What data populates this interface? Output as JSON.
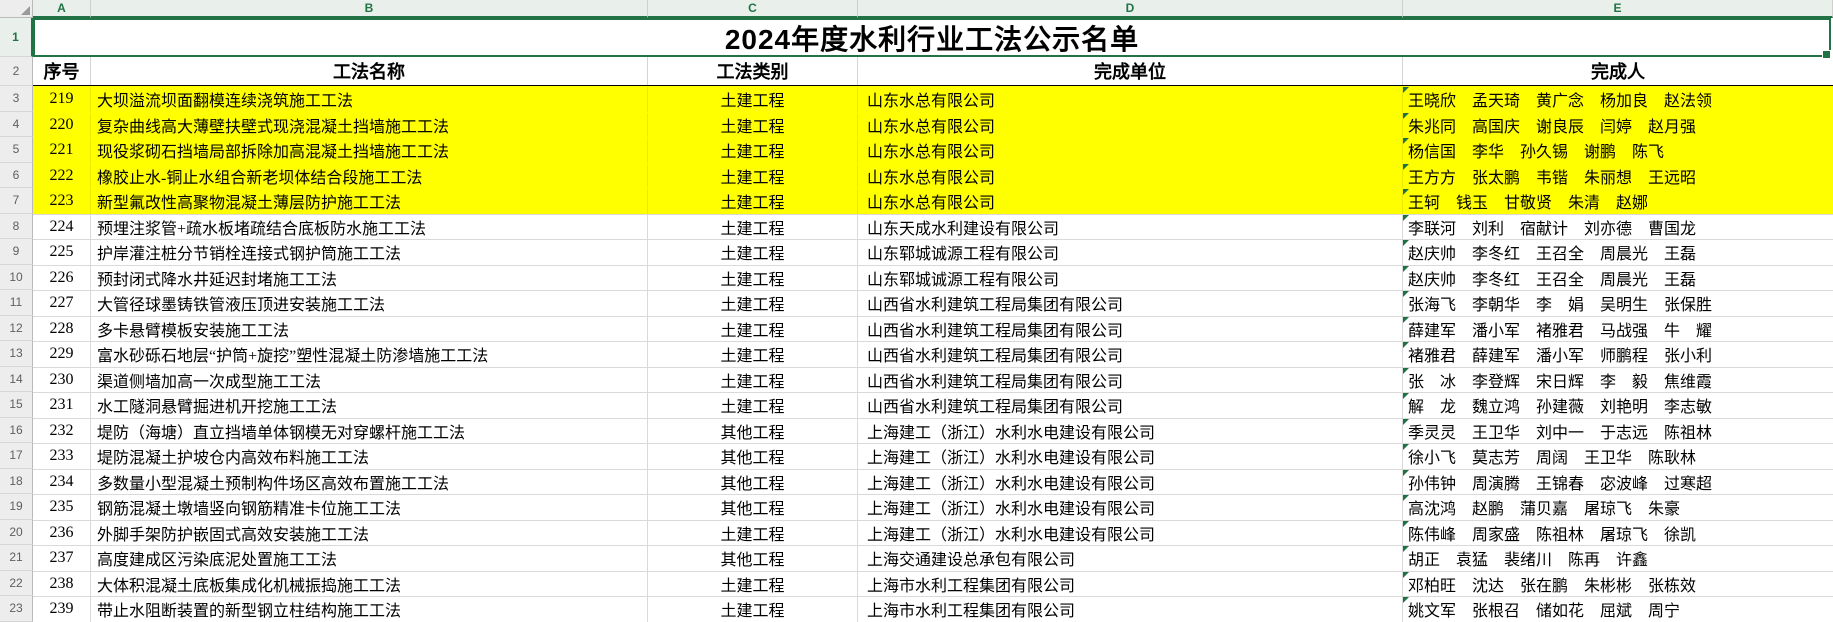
{
  "app": {
    "title_cell": "2024年度水利行业工法公示名单",
    "column_letters": [
      "A",
      "B",
      "C",
      "D",
      "E"
    ],
    "row_numbers": [
      "1",
      "2",
      "3",
      "4",
      "5",
      "6",
      "7",
      "8",
      "9",
      "10",
      "11",
      "12",
      "13",
      "14",
      "15",
      "16",
      "17",
      "18",
      "19",
      "20",
      "21",
      "22",
      "23"
    ],
    "colors": {
      "accent_green": "#217346",
      "highlight_yellow": "#FFFF00"
    },
    "table": {
      "headers": {
        "no": "序号",
        "name": "工法名称",
        "category": "工法类别",
        "unit": "完成单位",
        "people": "完成人"
      },
      "rows": [
        {
          "no": "219",
          "name": "大坝溢流坝面翻模连续浇筑施工工法",
          "category": "土建工程",
          "unit": "山东水总有限公司",
          "people": [
            "王晓欣",
            "孟天琦",
            "黄广念",
            "杨加良",
            "赵法领"
          ],
          "highlight": true
        },
        {
          "no": "220",
          "name": "复杂曲线高大薄壁扶壁式现浇混凝土挡墙施工工法",
          "category": "土建工程",
          "unit": "山东水总有限公司",
          "people": [
            "朱兆同",
            "高国庆",
            "谢良辰",
            "闫婷",
            "赵月强"
          ],
          "highlight": true
        },
        {
          "no": "221",
          "name": "现役浆砌石挡墙局部拆除加高混凝土挡墙施工工法",
          "category": "土建工程",
          "unit": "山东水总有限公司",
          "people": [
            "杨信国",
            "李华",
            "孙久锡",
            "谢鹏",
            "陈飞"
          ],
          "highlight": true
        },
        {
          "no": "222",
          "name": "橡胶止水-铜止水组合新老坝体结合段施工工法",
          "category": "土建工程",
          "unit": "山东水总有限公司",
          "people": [
            "王方方",
            "张太鹏",
            "韦锴",
            "朱丽想",
            "王远昭"
          ],
          "highlight": true
        },
        {
          "no": "223",
          "name": "新型氟改性高聚物混凝土薄层防护施工工法",
          "category": "土建工程",
          "unit": "山东水总有限公司",
          "people": [
            "王轲",
            "钱玉",
            "甘敬贤",
            "朱清",
            "赵娜"
          ],
          "highlight": true
        },
        {
          "no": "224",
          "name": "预埋注浆管+疏水板堵疏结合底板防水施工工法",
          "category": "土建工程",
          "unit": "山东天成水利建设有限公司",
          "people": [
            "李联河",
            "刘利",
            "宿献计",
            "刘亦德",
            "曹国龙"
          ],
          "highlight": false
        },
        {
          "no": "225",
          "name": "护岸灌注桩分节销栓连接式钢护筒施工工法",
          "category": "土建工程",
          "unit": "山东郓城诚源工程有限公司",
          "people": [
            "赵庆帅",
            "李冬红",
            "王召全",
            "周晨光",
            "王磊"
          ],
          "highlight": false
        },
        {
          "no": "226",
          "name": "预封闭式降水井延迟封堵施工工法",
          "category": "土建工程",
          "unit": "山东郓城诚源工程有限公司",
          "people": [
            "赵庆帅",
            "李冬红",
            "王召全",
            "周晨光",
            "王磊"
          ],
          "highlight": false
        },
        {
          "no": "227",
          "name": "大管径球墨铸铁管液压顶进安装施工工法",
          "category": "土建工程",
          "unit": "山西省水利建筑工程局集团有限公司",
          "people": [
            "张海飞",
            "李朝华",
            "李　娟",
            "吴明生",
            "张保胜"
          ],
          "highlight": false
        },
        {
          "no": "228",
          "name": "多卡悬臂模板安装施工工法",
          "category": "土建工程",
          "unit": "山西省水利建筑工程局集团有限公司",
          "people": [
            "薛建军",
            "潘小军",
            "褚雅君",
            "马战强",
            "牛　耀"
          ],
          "highlight": false
        },
        {
          "no": "229",
          "name": "富水砂砾石地层“护筒+旋挖”塑性混凝土防渗墙施工工法",
          "category": "土建工程",
          "unit": "山西省水利建筑工程局集团有限公司",
          "people": [
            "褚雅君",
            "薛建军",
            "潘小军",
            "师鹏程",
            "张小利"
          ],
          "highlight": false
        },
        {
          "no": "230",
          "name": "渠道侧墙加高一次成型施工工法",
          "category": "土建工程",
          "unit": "山西省水利建筑工程局集团有限公司",
          "people": [
            "张　冰",
            "李登辉",
            "宋日辉",
            "李　毅",
            "焦维霞"
          ],
          "highlight": false
        },
        {
          "no": "231",
          "name": "水工隧洞悬臂掘进机开挖施工工法",
          "category": "土建工程",
          "unit": "山西省水利建筑工程局集团有限公司",
          "people": [
            "解　龙",
            "魏立鸿",
            "孙建薇",
            "刘艳明",
            "李志敏"
          ],
          "highlight": false
        },
        {
          "no": "232",
          "name": "堤防（海塘）直立挡墙单体钢模无对穿螺杆施工工法",
          "category": "其他工程",
          "unit": "上海建工（浙江）水利水电建设有限公司",
          "people": [
            "季灵灵",
            "王卫华",
            "刘中一",
            "于志远",
            "陈祖林"
          ],
          "highlight": false
        },
        {
          "no": "233",
          "name": "堤防混凝土护坡仓内高效布料施工工法",
          "category": "其他工程",
          "unit": "上海建工（浙江）水利水电建设有限公司",
          "people": [
            "徐小飞",
            "莫志芳",
            "周阔",
            "王卫华",
            "陈耿林"
          ],
          "highlight": false
        },
        {
          "no": "234",
          "name": "多数量小型混凝土预制构件场区高效布置施工工法",
          "category": "其他工程",
          "unit": "上海建工（浙江）水利水电建设有限公司",
          "people": [
            "孙伟钟",
            "周演腾",
            "王锦春",
            "宓波峰",
            "过寒超"
          ],
          "highlight": false
        },
        {
          "no": "235",
          "name": "钢筋混凝土墩墙竖向钢筋精准卡位施工工法",
          "category": "其他工程",
          "unit": "上海建工（浙江）水利水电建设有限公司",
          "people": [
            "高沈鸿",
            "赵鹏",
            "蒲贝嘉",
            "屠琼飞",
            "朱豪"
          ],
          "highlight": false
        },
        {
          "no": "236",
          "name": "外脚手架防护嵌固式高效安装施工工法",
          "category": "土建工程",
          "unit": "上海建工（浙江）水利水电建设有限公司",
          "people": [
            "陈伟峰",
            "周家盛",
            "陈祖林",
            "屠琼飞",
            "徐凯"
          ],
          "highlight": false
        },
        {
          "no": "237",
          "name": "高度建成区污染底泥处置施工工法",
          "category": "其他工程",
          "unit": "上海交通建设总承包有限公司",
          "people": [
            "胡正",
            "袁猛",
            "裴绪川",
            "陈再",
            "许鑫"
          ],
          "highlight": false
        },
        {
          "no": "238",
          "name": "大体积混凝土底板集成化机械振捣施工工法",
          "category": "土建工程",
          "unit": "上海市水利工程集团有限公司",
          "people": [
            "邓柏旺",
            "沈达",
            "张在鹏",
            "朱彬彬",
            "张栋效"
          ],
          "highlight": false
        },
        {
          "no": "239",
          "name": "带止水阻断装置的新型钢立柱结构施工工法",
          "category": "土建工程",
          "unit": "上海市水利工程集团有限公司",
          "people": [
            "姚文军",
            "张根召",
            "储如花",
            "屈斌",
            "周宁"
          ],
          "highlight": false
        }
      ]
    }
  }
}
